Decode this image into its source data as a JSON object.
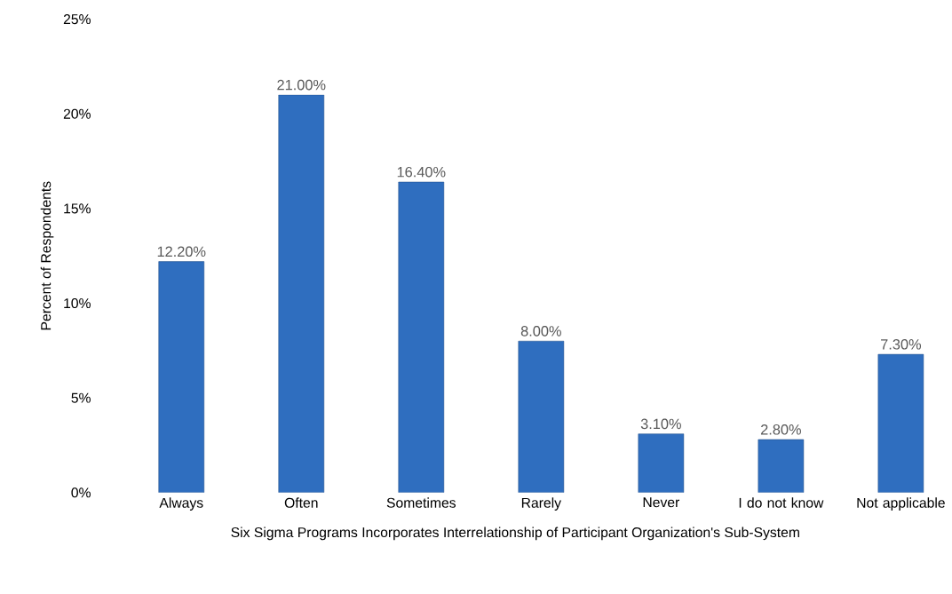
{
  "chart_data": {
    "type": "bar",
    "xlabel": "Six Sigma Programs Incorporates Interrelationship of Participant Organization's Sub-System",
    "ylabel": "Percent of Respondents",
    "categories": [
      "Always",
      "Often",
      "Sometimes",
      "Rarely",
      "Never",
      "I do not know",
      "Not applicable"
    ],
    "values": [
      12.2,
      21.0,
      16.4,
      8.0,
      3.1,
      2.8,
      7.3
    ],
    "value_labels": [
      "12.20%",
      "21.00%",
      "16.40%",
      "8.00%",
      "3.10%",
      "2.80%",
      "7.30%"
    ],
    "color": "#2f6ebf",
    "ylim": [
      0,
      25
    ],
    "yticks": [
      {
        "value": 0,
        "label": "0%"
      },
      {
        "value": 5,
        "label": "5%"
      },
      {
        "value": 10,
        "label": "10%"
      },
      {
        "value": 15,
        "label": "15%"
      },
      {
        "value": 20,
        "label": "20%"
      },
      {
        "value": 25,
        "label": "25%"
      }
    ]
  }
}
